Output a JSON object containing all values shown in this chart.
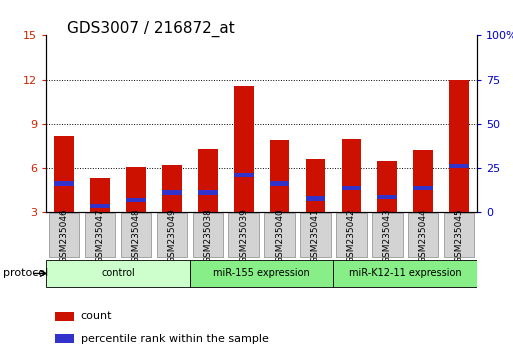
{
  "title": "GDS3007 / 216872_at",
  "samples": [
    "GSM235046",
    "GSM235047",
    "GSM235048",
    "GSM235049",
    "GSM235038",
    "GSM235039",
    "GSM235040",
    "GSM235041",
    "GSM235042",
    "GSM235043",
    "GSM235044",
    "GSM235045"
  ],
  "red_values": [
    8.2,
    5.3,
    6.1,
    6.2,
    7.3,
    11.6,
    7.9,
    6.6,
    8.0,
    6.5,
    7.2,
    12.0
  ],
  "blue_values": [
    4.8,
    3.3,
    3.7,
    4.2,
    4.2,
    5.4,
    4.8,
    3.8,
    4.5,
    3.9,
    4.5,
    6.0
  ],
  "blue_heights": [
    0.3,
    0.3,
    0.3,
    0.3,
    0.3,
    0.3,
    0.3,
    0.3,
    0.3,
    0.3,
    0.3,
    0.3
  ],
  "ylim_left": [
    3,
    15
  ],
  "ylim_right": [
    0,
    100
  ],
  "yticks_left": [
    3,
    6,
    9,
    12,
    15
  ],
  "yticks_right": [
    0,
    25,
    50,
    75,
    100
  ],
  "ytick_labels_right": [
    "0",
    "25",
    "50",
    "75",
    "100%"
  ],
  "gridlines": [
    6,
    9,
    12
  ],
  "bar_width": 0.55,
  "red_color": "#cc1100",
  "blue_color": "#3333cc",
  "plot_bg": "#ffffff",
  "tick_label_color_left": "#cc2200",
  "tick_label_color_right": "#0000cc",
  "legend_items": [
    "count",
    "percentile rank within the sample"
  ],
  "protocol_label": "protocol",
  "title_fontsize": 11,
  "bar_bottom": 3,
  "group_configs": [
    [
      0,
      3,
      "#ccffcc",
      "control"
    ],
    [
      4,
      7,
      "#88ee88",
      "miR-155 expression"
    ],
    [
      8,
      11,
      "#88ee88",
      "miR-K12-11 expression"
    ]
  ]
}
